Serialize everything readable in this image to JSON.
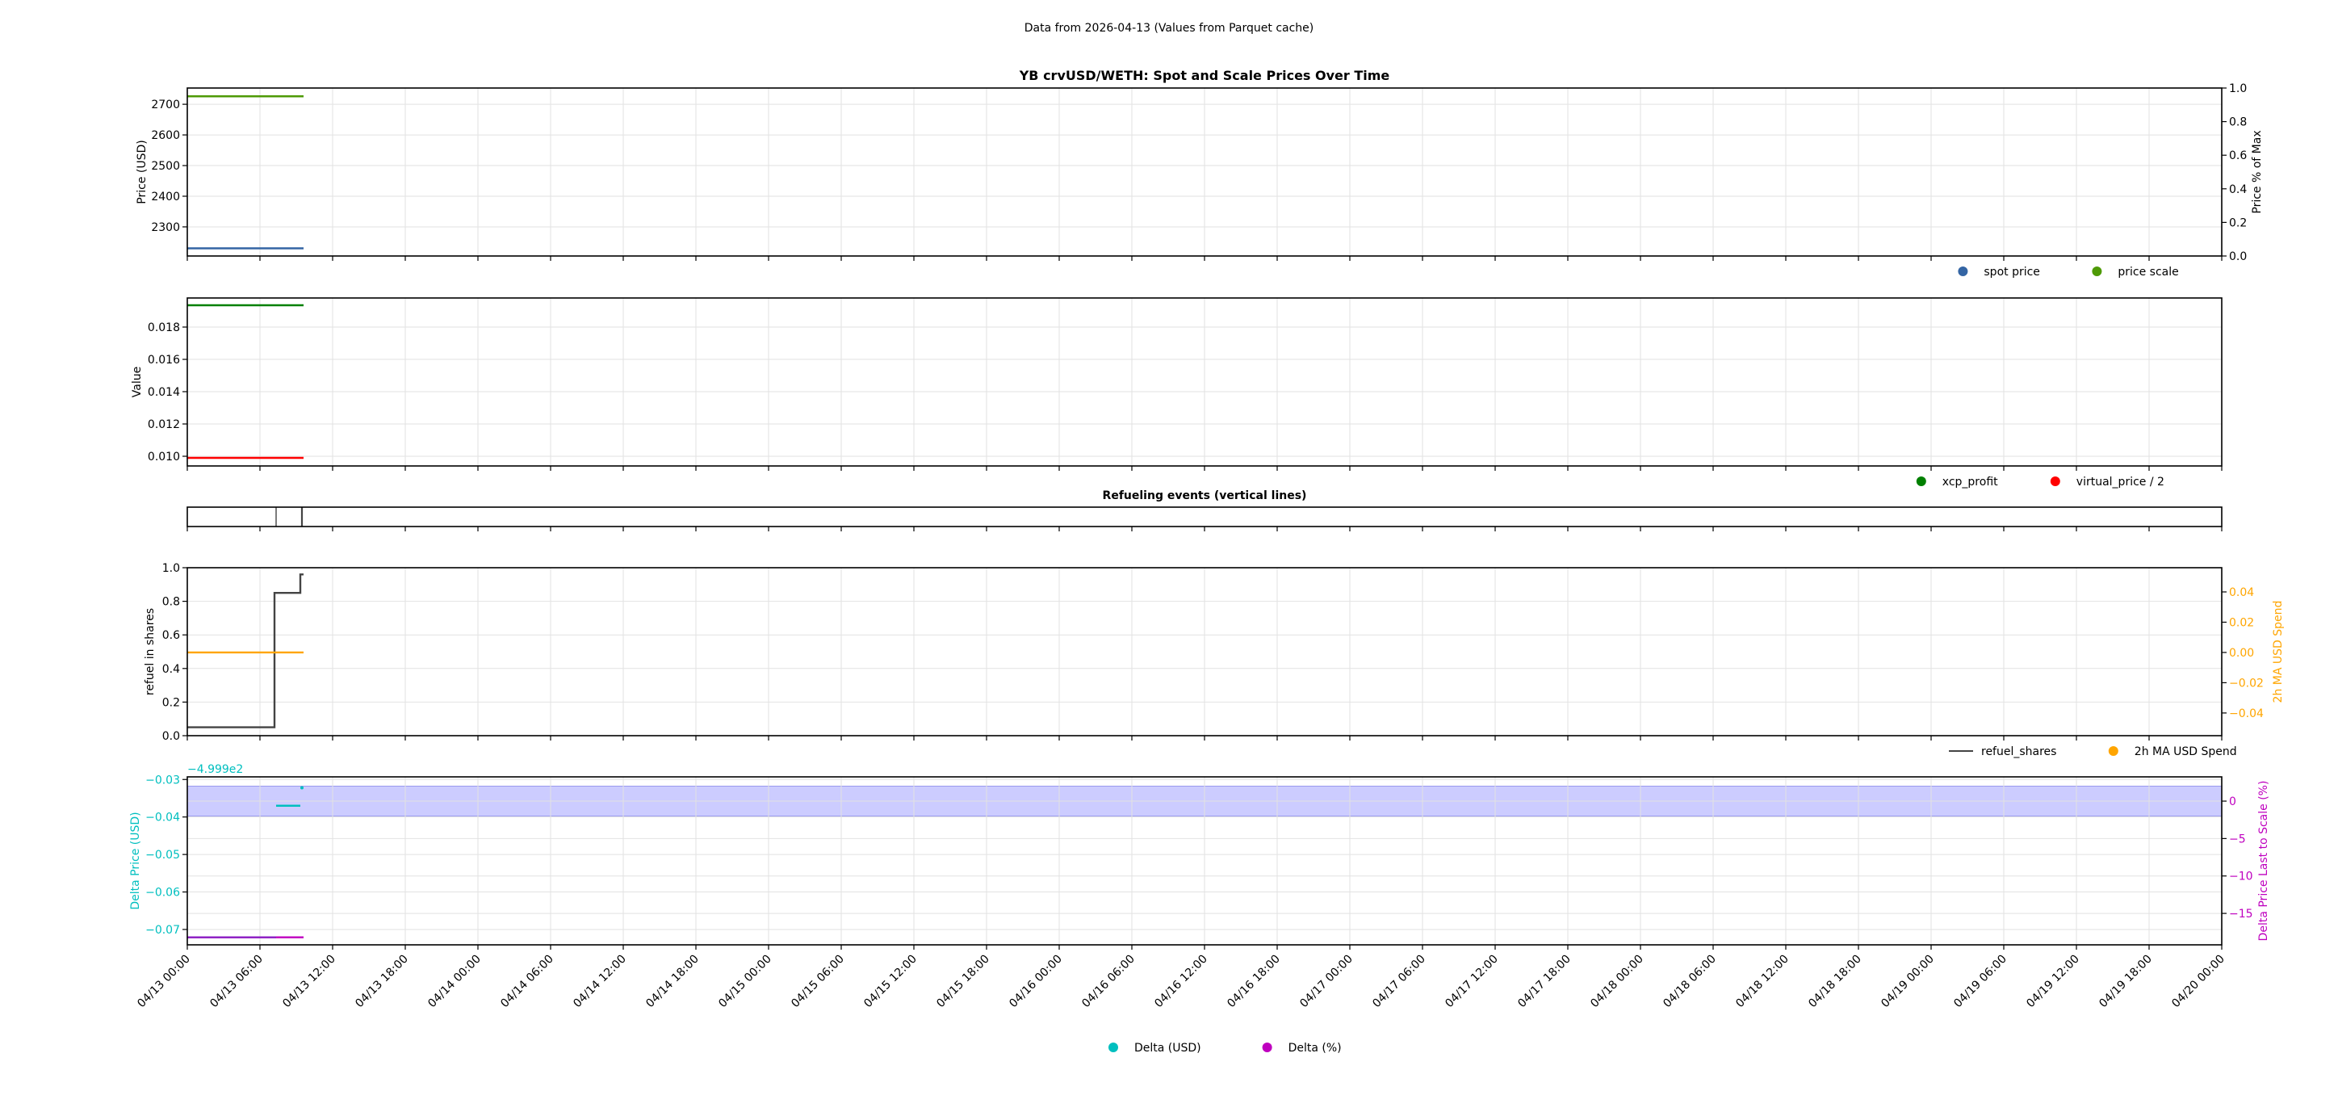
{
  "suptitle": "Data from 2026-04-13 (Values from Parquet cache)",
  "x_axis": {
    "xlim": [
      "04/13 00:00",
      "04/20 00:00"
    ],
    "tick_labels": [
      "04/13 00:00",
      "04/13 06:00",
      "04/13 12:00",
      "04/13 18:00",
      "04/14 00:00",
      "04/14 06:00",
      "04/14 12:00",
      "04/14 18:00",
      "04/15 00:00",
      "04/15 06:00",
      "04/15 12:00",
      "04/15 18:00",
      "04/16 00:00",
      "04/16 06:00",
      "04/16 12:00",
      "04/16 18:00",
      "04/17 00:00",
      "04/17 06:00",
      "04/17 12:00",
      "04/17 18:00",
      "04/18 00:00",
      "04/18 06:00",
      "04/18 12:00",
      "04/18 18:00",
      "04/19 00:00",
      "04/19 06:00",
      "04/19 12:00",
      "04/19 18:00",
      "04/20 00:00"
    ],
    "grid": true
  },
  "chart_data": [
    {
      "type": "line",
      "title": "YB crvUSD/WETH: Spot and Scale Prices Over Time",
      "ylabel": "Price (USD)",
      "ylim": [
        2205,
        2753
      ],
      "yticks": [
        2300,
        2400,
        2500,
        2600,
        2700
      ],
      "ytick_labels": [
        "2300",
        "2400",
        "2500",
        "2600",
        "2700"
      ],
      "y2label": "Price % of Max",
      "y2lim": [
        0,
        1
      ],
      "y2ticks": [
        0,
        0.2,
        0.4,
        0.6,
        0.8,
        1.0
      ],
      "y2tick_labels": [
        "0.0",
        "0.2",
        "0.4",
        "0.6",
        "0.8",
        "1.0"
      ],
      "grid": true,
      "legend": "below-right",
      "series": [
        {
          "name": "spot price",
          "color": "#3465a4",
          "marker": "dot",
          "axis": "y",
          "x": [
            "04/13 00:00",
            "04/13 09:36"
          ],
          "y": [
            2230,
            2230
          ]
        },
        {
          "name": "price scale",
          "color": "#4e9a06",
          "marker": "dot",
          "axis": "y",
          "x": [
            "04/13 00:00",
            "04/13 09:36"
          ],
          "y": [
            2726,
            2726
          ]
        }
      ]
    },
    {
      "type": "line",
      "ylabel": "Value",
      "ylim": [
        0.0094,
        0.0198
      ],
      "yticks": [
        0.01,
        0.012,
        0.014,
        0.016,
        0.018
      ],
      "ytick_labels": [
        "0.010",
        "0.012",
        "0.014",
        "0.016",
        "0.018"
      ],
      "grid": true,
      "legend": "below-right",
      "series": [
        {
          "name": "xcp_profit",
          "color": "#008000",
          "marker": "dot",
          "axis": "y",
          "x": [
            "04/13 00:00",
            "04/13 09:36"
          ],
          "y": [
            0.01935,
            0.01935
          ]
        },
        {
          "name": "virtual_price / 2",
          "color": "#ff0000",
          "marker": "dot",
          "axis": "y",
          "x": [
            "04/13 00:00",
            "04/13 09:36"
          ],
          "y": [
            0.0099,
            0.0099
          ]
        }
      ]
    },
    {
      "type": "events",
      "title": "Refueling events (vertical lines)",
      "events": [
        "04/13 07:20",
        "04/13 09:28"
      ],
      "color": "#444444"
    },
    {
      "type": "line",
      "ylabel": "refuel in shares",
      "ylim": [
        0,
        1
      ],
      "yticks": [
        0,
        0.2,
        0.4,
        0.6,
        0.8,
        1.0
      ],
      "ytick_labels": [
        "0.0",
        "0.2",
        "0.4",
        "0.6",
        "0.8",
        "1.0"
      ],
      "y2label": "2h MA USD Spend",
      "y2lim": [
        -0.055,
        0.056
      ],
      "y2ticks": [
        -0.04,
        -0.02,
        0,
        0.02,
        0.04
      ],
      "y2tick_labels": [
        "−0.04",
        "−0.02",
        "0.00",
        "0.02",
        "0.04"
      ],
      "y2color": "#ffa500",
      "grid": true,
      "legend": "below-right",
      "series": [
        {
          "name": "refuel_shares",
          "color": "#444444",
          "marker": "line",
          "axis": "y",
          "x": [
            "04/13 00:00",
            "04/13 07:12",
            "04/13 07:12",
            "04/13 09:20",
            "04/13 09:20",
            "04/13 09:36"
          ],
          "y": [
            0.05,
            0.05,
            0.85,
            0.85,
            0.96,
            0.96
          ]
        },
        {
          "name": "2h MA USD Spend",
          "color": "#ffa500",
          "marker": "dot",
          "axis": "y2",
          "x": [
            "04/13 00:00",
            "04/13 09:36"
          ],
          "y": [
            0,
            0
          ]
        }
      ]
    },
    {
      "type": "line",
      "ylabel": "Delta Price (USD)",
      "yoffset_label": "−4.999e2",
      "ylim": [
        -0.0741,
        -0.0293
      ],
      "yticks": [
        -0.07,
        -0.06,
        -0.05,
        -0.04,
        -0.03
      ],
      "ytick_labels": [
        "−0.07",
        "−0.06",
        "−0.05",
        "−0.04",
        "−0.03"
      ],
      "ycolor": "#00bfbf",
      "y2label": "Delta Price Last to Scale (%)",
      "y2lim": [
        -19.2,
        3.24
      ],
      "y2ticks": [
        -15,
        -10,
        -5,
        0
      ],
      "y2tick_labels": [
        "−15",
        "−10",
        "−5",
        "0"
      ],
      "y2color": "#bf00bf",
      "band_y2": [
        -2,
        2
      ],
      "band_color": "#ccccff",
      "grid": true,
      "legend": "below-center",
      "series": [
        {
          "name": "Delta (USD)",
          "color": "#00bfbf",
          "marker": "dot",
          "axis": "y",
          "x": [
            "04/13 07:20",
            "04/13 09:20",
            "04/13 09:28"
          ],
          "y": [
            -0.037,
            -0.037,
            -0.0322
          ]
        },
        {
          "name": "Delta (%)",
          "color": "#bf00bf",
          "marker": "dot",
          "axis": "y2",
          "x": [
            "04/13 00:00",
            "04/13 07:20",
            "04/13 09:36"
          ],
          "y": [
            -18.2,
            -18.2,
            -18.2
          ]
        }
      ]
    }
  ]
}
